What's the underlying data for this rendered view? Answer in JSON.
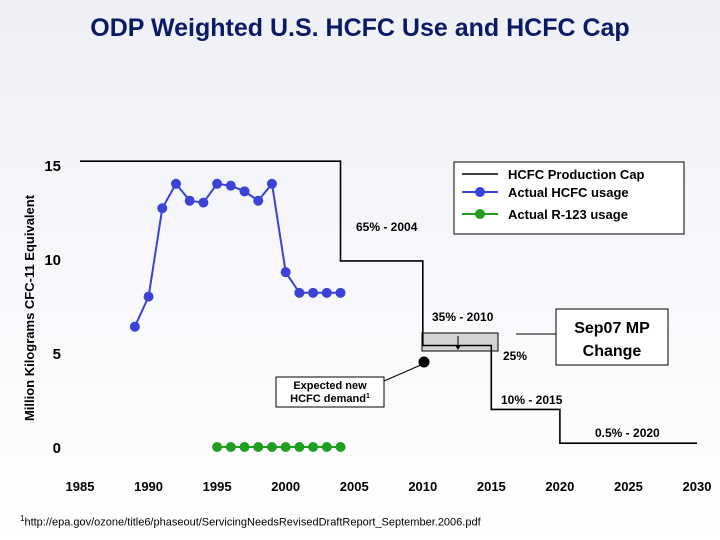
{
  "title": "ODP Weighted U.S. HCFC Use and HCFC Cap",
  "footnote": {
    "marker": "1",
    "text": "http://epa.gov/ozone/title6/phaseout/ServicingNeedsRevisedDraftReport_September.2006.pdf"
  },
  "colors": {
    "cap": "#000000",
    "hcfc": "#3a43d6",
    "r123": "#1f9e1f",
    "title": "#0b1a66"
  },
  "chart_data": {
    "type": "line",
    "ylabel": "Million Kilograms CFC-11 Equivalent",
    "xlabel": "",
    "xlim": [
      1985,
      2030
    ],
    "ylim": [
      0,
      15
    ],
    "x_ticks": [
      1985,
      1990,
      1995,
      2000,
      2005,
      2010,
      2015,
      2020,
      2025,
      2030
    ],
    "y_ticks": [
      0,
      5,
      10,
      15
    ],
    "legend_position": "top-right",
    "grid": false,
    "series": [
      {
        "name": "HCFC Production Cap",
        "style": "step",
        "x": [
          1985,
          1989,
          2004,
          2004,
          2010,
          2010,
          2015,
          2015,
          2020,
          2020,
          2030
        ],
        "y": [
          15.2,
          15.2,
          15.2,
          9.9,
          9.9,
          5.4,
          5.4,
          2.0,
          2.0,
          0.2,
          0.2
        ]
      },
      {
        "name": "Actual HCFC usage",
        "x": [
          1989,
          1990,
          1991,
          1992,
          1993,
          1994,
          1995,
          1996,
          1997,
          1998,
          1999,
          2000,
          2001,
          2002,
          2003,
          2004
        ],
        "y": [
          6.4,
          8.0,
          12.7,
          14.0,
          13.1,
          13.0,
          14.0,
          13.9,
          13.6,
          13.1,
          14.0,
          9.3,
          8.2,
          8.2,
          8.2,
          8.2
        ]
      },
      {
        "name": "Actual R-123 usage",
        "x": [
          1995,
          1996,
          1997,
          1998,
          1999,
          2000,
          2001,
          2002,
          2003,
          2004
        ],
        "y": [
          0,
          0,
          0,
          0,
          0,
          0,
          0,
          0,
          0,
          0
        ]
      }
    ],
    "annotations": [
      {
        "text": "65% - 2004"
      },
      {
        "text": "35% - 2010"
      },
      {
        "text": "25%"
      },
      {
        "text": "10% - 2015"
      },
      {
        "text": "0.5% - 2020"
      },
      {
        "text": "Expected new"
      },
      {
        "text": "HCFC demand",
        "superscript": "1"
      },
      {
        "text": "Sep07 MP"
      },
      {
        "text": "Change"
      }
    ]
  }
}
